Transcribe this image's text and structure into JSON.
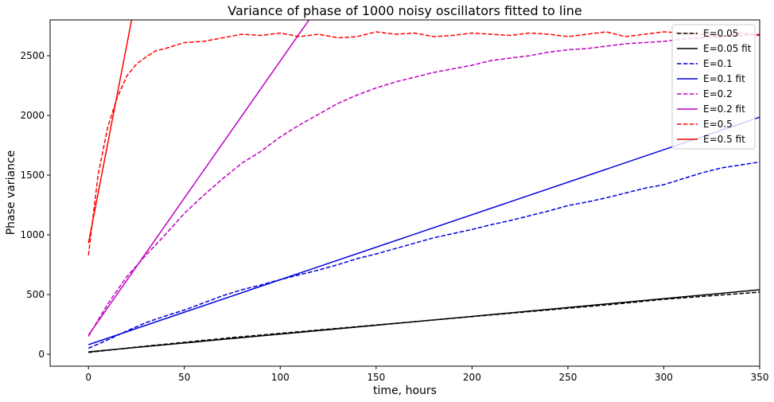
{
  "chart_data": {
    "type": "line",
    "title": "Variance of phase of 1000 noisy oscillators fitted to line",
    "xlabel": "time, hours",
    "ylabel": "Phase variance",
    "xlim": [
      -20,
      350
    ],
    "ylim": [
      -100,
      2800
    ],
    "xticks": [
      0,
      50,
      100,
      150,
      200,
      250,
      300,
      350
    ],
    "yticks": [
      0,
      500,
      1000,
      1500,
      2000,
      2500
    ],
    "grid": false,
    "legend_position": "top-right",
    "series": [
      {
        "name": "E=0.05",
        "color": "#000000",
        "style": "dashed",
        "x": [
          0,
          25,
          50,
          75,
          100,
          125,
          150,
          175,
          200,
          225,
          250,
          275,
          300,
          325,
          350
        ],
        "y": [
          15,
          60,
          100,
          140,
          175,
          210,
          245,
          280,
          315,
          350,
          385,
          420,
          460,
          490,
          520
        ]
      },
      {
        "name": "E=0.05 fit",
        "color": "#000000",
        "style": "solid",
        "x": [
          0,
          350
        ],
        "y": [
          20,
          540
        ]
      },
      {
        "name": "E=0.1",
        "color": "#0000dd",
        "style": "dashed",
        "x": [
          0,
          10,
          20,
          30,
          40,
          50,
          60,
          70,
          80,
          90,
          100,
          110,
          120,
          130,
          140,
          150,
          160,
          170,
          180,
          190,
          200,
          210,
          220,
          230,
          240,
          250,
          260,
          270,
          280,
          290,
          300,
          310,
          320,
          330,
          340,
          350
        ],
        "y": [
          50,
          120,
          195,
          265,
          320,
          370,
          430,
          490,
          540,
          580,
          625,
          665,
          705,
          750,
          800,
          840,
          885,
          930,
          975,
          1010,
          1045,
          1085,
          1120,
          1160,
          1200,
          1245,
          1275,
          1310,
          1350,
          1390,
          1420,
          1470,
          1520,
          1560,
          1585,
          1610
        ]
      },
      {
        "name": "E=0.1 fit",
        "color": "#0000dd",
        "style": "solid",
        "x": [
          0,
          350
        ],
        "y": [
          80,
          1985
        ]
      },
      {
        "name": "E=0.2",
        "color": "#c000c0",
        "style": "dashed",
        "x": [
          0,
          10,
          20,
          30,
          40,
          50,
          60,
          70,
          80,
          90,
          100,
          110,
          120,
          130,
          140,
          150,
          160,
          170,
          180,
          190,
          200,
          210,
          220,
          230,
          240,
          250,
          260,
          270,
          280,
          290,
          300,
          310,
          320,
          330,
          340,
          350
        ],
        "y": [
          150,
          420,
          650,
          830,
          1000,
          1180,
          1330,
          1470,
          1600,
          1700,
          1820,
          1920,
          2010,
          2100,
          2170,
          2230,
          2280,
          2320,
          2360,
          2390,
          2420,
          2460,
          2480,
          2500,
          2530,
          2550,
          2560,
          2580,
          2600,
          2610,
          2620,
          2640,
          2650,
          2660,
          2670,
          2680
        ]
      },
      {
        "name": "E=0.2 fit",
        "color": "#c000c0",
        "style": "solid",
        "x": [
          0,
          115
        ],
        "y": [
          160,
          2800
        ]
      },
      {
        "name": "E=0.5",
        "color": "#ff0000",
        "style": "dashed",
        "x": [
          0,
          5,
          10,
          15,
          20,
          25,
          30,
          35,
          40,
          50,
          60,
          70,
          80,
          90,
          100,
          110,
          120,
          130,
          140,
          150,
          160,
          170,
          180,
          190,
          200,
          210,
          220,
          230,
          240,
          250,
          260,
          270,
          280,
          290,
          300,
          310,
          320,
          330,
          340,
          350
        ],
        "y": [
          830,
          1500,
          1900,
          2150,
          2330,
          2430,
          2490,
          2540,
          2560,
          2610,
          2620,
          2650,
          2680,
          2670,
          2690,
          2660,
          2680,
          2650,
          2660,
          2700,
          2680,
          2690,
          2660,
          2670,
          2690,
          2680,
          2670,
          2690,
          2680,
          2660,
          2680,
          2700,
          2660,
          2680,
          2700,
          2690,
          2680,
          2660,
          2690,
          2670
        ]
      },
      {
        "name": "E=0.5 fit",
        "color": "#ff0000",
        "style": "solid",
        "x": [
          0,
          22.5
        ],
        "y": [
          930,
          2800
        ]
      }
    ]
  }
}
